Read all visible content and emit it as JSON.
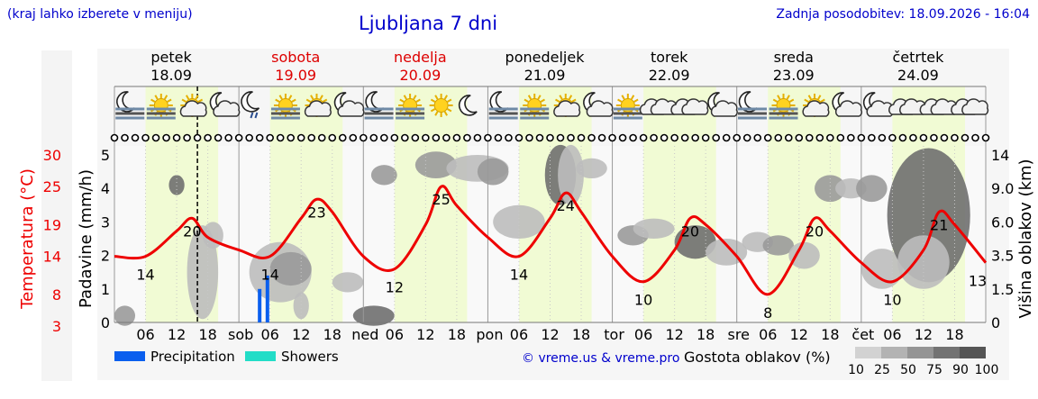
{
  "header": {
    "hint": "(kraj lahko izberete v meniju)",
    "title": "Ljubljana 7 dni",
    "updated": "Zadnja posodobitev: 18.09.2026 - 16:04"
  },
  "days": [
    {
      "name": "petek",
      "date": "18.09",
      "weekend": false,
      "abbr": ""
    },
    {
      "name": "sobota",
      "date": "19.09",
      "weekend": true,
      "abbr": "sob"
    },
    {
      "name": "nedelja",
      "date": "20.09",
      "weekend": true,
      "abbr": "ned"
    },
    {
      "name": "ponedeljek",
      "date": "21.09",
      "weekend": false,
      "abbr": "pon"
    },
    {
      "name": "torek",
      "date": "22.09",
      "weekend": false,
      "abbr": "tor"
    },
    {
      "name": "sreda",
      "date": "23.09",
      "weekend": false,
      "abbr": "sre"
    },
    {
      "name": "četrtek",
      "date": "24.09",
      "weekend": false,
      "abbr": "čet"
    }
  ],
  "chart_data": {
    "type": "line",
    "x_hour_ticks": [
      "06",
      "12",
      "18"
    ],
    "temperature": {
      "axis_label": "Temperatura (°C)",
      "ticks": [
        "3",
        "8",
        "14",
        "19",
        "25",
        "30"
      ],
      "color": "#ee0000",
      "hours": [
        0,
        6,
        12,
        15,
        18,
        24,
        30,
        36,
        39,
        42,
        48,
        54,
        60,
        63,
        66,
        72,
        78,
        84,
        87,
        90,
        96,
        102,
        108,
        111,
        114,
        120,
        126,
        132,
        135,
        138,
        144,
        150,
        156,
        159,
        162,
        168
      ],
      "values": [
        14,
        14,
        18,
        20,
        17,
        15,
        14,
        20,
        23,
        21,
        14,
        12,
        19,
        25,
        22,
        17,
        14,
        20,
        24,
        21,
        14,
        10,
        15,
        20,
        19,
        14,
        8,
        15,
        20,
        18,
        13,
        10,
        15,
        21,
        19,
        13
      ],
      "labels": [
        {
          "hour": 6,
          "value": "14"
        },
        {
          "hour": 15,
          "value": "20"
        },
        {
          "hour": 30,
          "value": "14"
        },
        {
          "hour": 39,
          "value": "23"
        },
        {
          "hour": 54,
          "value": "12"
        },
        {
          "hour": 63,
          "value": "25"
        },
        {
          "hour": 78,
          "value": "14"
        },
        {
          "hour": 87,
          "value": "24"
        },
        {
          "hour": 102,
          "value": "10"
        },
        {
          "hour": 111,
          "value": "20"
        },
        {
          "hour": 126,
          "value": "8"
        },
        {
          "hour": 135,
          "value": "20"
        },
        {
          "hour": 150,
          "value": "10"
        },
        {
          "hour": 159,
          "value": "21"
        },
        {
          "hour": 168,
          "value": "13"
        }
      ]
    },
    "precipitation": {
      "axis_label": "Padavine (mm/h)",
      "ylim": [
        0,
        5
      ],
      "ticks": [
        "0",
        "1",
        "2",
        "3",
        "4",
        "5"
      ],
      "bars": [
        {
          "hour": 28,
          "value": 1.0,
          "kind": "precipitation"
        },
        {
          "hour": 29.5,
          "value": 1.4,
          "kind": "precipitation"
        }
      ]
    },
    "cloud_height": {
      "axis_label": "Višina oblakov (km)",
      "ticks": [
        "0",
        "1.5",
        "3.5",
        "6.0",
        "9.0",
        "14"
      ]
    },
    "cloud_blobs": [
      {
        "hour": 2,
        "level": 0.2,
        "rx": 2,
        "ry": 0.3,
        "d": 50
      },
      {
        "hour": 12,
        "level": 4.1,
        "rx": 1.5,
        "ry": 0.3,
        "d": 75
      },
      {
        "hour": 17,
        "level": 1.5,
        "rx": 3,
        "ry": 1.4,
        "d": 25
      },
      {
        "hour": 19,
        "level": 2.6,
        "rx": 2,
        "ry": 0.4,
        "d": 25
      },
      {
        "hour": 32,
        "level": 1.5,
        "rx": 6,
        "ry": 0.9,
        "d": 25
      },
      {
        "hour": 34,
        "level": 1.6,
        "rx": 4,
        "ry": 0.5,
        "d": 50
      },
      {
        "hour": 36,
        "level": 0.5,
        "rx": 1.5,
        "ry": 0.4,
        "d": 25
      },
      {
        "hour": 45,
        "level": 1.2,
        "rx": 3,
        "ry": 0.3,
        "d": 25
      },
      {
        "hour": 50,
        "level": 0.2,
        "rx": 4,
        "ry": 0.3,
        "d": 75
      },
      {
        "hour": 52,
        "level": 4.4,
        "rx": 2.5,
        "ry": 0.3,
        "d": 50
      },
      {
        "hour": 62,
        "level": 4.7,
        "rx": 4,
        "ry": 0.4,
        "d": 50
      },
      {
        "hour": 70,
        "level": 4.6,
        "rx": 6,
        "ry": 0.4,
        "d": 25
      },
      {
        "hour": 73,
        "level": 4.5,
        "rx": 3,
        "ry": 0.4,
        "d": 50
      },
      {
        "hour": 78,
        "level": 3.0,
        "rx": 5,
        "ry": 0.5,
        "d": 25
      },
      {
        "hour": 86,
        "level": 4.4,
        "rx": 3,
        "ry": 0.9,
        "d": 75
      },
      {
        "hour": 88,
        "level": 4.4,
        "rx": 2.5,
        "ry": 0.9,
        "d": 25
      },
      {
        "hour": 92,
        "level": 4.6,
        "rx": 3,
        "ry": 0.3,
        "d": 25
      },
      {
        "hour": 100,
        "level": 2.6,
        "rx": 3,
        "ry": 0.3,
        "d": 50
      },
      {
        "hour": 104,
        "level": 2.8,
        "rx": 4,
        "ry": 0.3,
        "d": 25
      },
      {
        "hour": 112,
        "level": 2.4,
        "rx": 4,
        "ry": 0.5,
        "d": 75
      },
      {
        "hour": 118,
        "level": 2.1,
        "rx": 4,
        "ry": 0.4,
        "d": 25
      },
      {
        "hour": 124,
        "level": 2.4,
        "rx": 3,
        "ry": 0.3,
        "d": 25
      },
      {
        "hour": 128,
        "level": 2.3,
        "rx": 3,
        "ry": 0.3,
        "d": 50
      },
      {
        "hour": 133,
        "level": 2.0,
        "rx": 3,
        "ry": 0.4,
        "d": 25
      },
      {
        "hour": 138,
        "level": 4.0,
        "rx": 3,
        "ry": 0.4,
        "d": 50
      },
      {
        "hour": 142,
        "level": 4.0,
        "rx": 3,
        "ry": 0.3,
        "d": 25
      },
      {
        "hour": 146,
        "level": 4.0,
        "rx": 3,
        "ry": 0.4,
        "d": 50
      },
      {
        "hour": 148,
        "level": 1.6,
        "rx": 4,
        "ry": 0.6,
        "d": 25
      },
      {
        "hour": 157,
        "level": 3.2,
        "rx": 8,
        "ry": 2,
        "d": 75
      },
      {
        "hour": 156,
        "level": 1.8,
        "rx": 5,
        "ry": 0.8,
        "d": 25
      }
    ],
    "current_time_hour": 16,
    "legend": [
      {
        "label": "Precipitation",
        "color": "#0a5fee"
      },
      {
        "label": "Showers",
        "color": "#22ddc7"
      }
    ],
    "cloud_legend": {
      "label": "Gostota oblakov (%)",
      "steps": [
        "10",
        "25",
        "50",
        "75",
        "90",
        "100"
      ]
    },
    "credit": "© vreme.us & vreme.pro"
  },
  "icons": [
    "moon-fog-icon",
    "sun-fog-icon",
    "sun-cloud-icon",
    "moon-cloud-icon",
    "moon-rain-icon",
    "sun-fog-icon",
    "sun-cloud-icon",
    "moon-cloud-icon",
    "moon-fog-icon",
    "sun-fog-icon",
    "sun-icon",
    "moon-icon",
    "moon-fog-icon",
    "sun-fog-icon",
    "sun-cloud-icon",
    "moon-cloud-icon",
    "sun-fog-icon",
    "cloud-icon",
    "cloud-icon",
    "moon-cloud-icon",
    "moon-fog-icon",
    "sun-fog-icon",
    "sun-cloud-icon",
    "moon-cloud-icon",
    "moon-cloud-icon",
    "cloud-icon",
    "cloud-icon",
    "cloud-icon"
  ],
  "wind_calm": [
    0,
    1,
    2,
    3,
    4,
    5,
    6,
    7,
    8,
    9,
    10,
    11,
    12,
    13,
    14,
    15,
    16,
    17,
    18,
    19,
    20,
    21,
    22,
    23,
    24,
    25,
    26,
    27,
    28,
    29,
    30,
    31,
    32,
    33,
    34,
    35,
    36,
    37,
    38,
    39,
    40,
    41,
    42,
    43,
    44,
    45,
    46,
    47,
    48,
    49,
    50,
    51,
    52,
    53,
    54,
    55,
    56,
    57,
    58,
    59,
    60,
    61,
    62,
    63,
    64,
    65,
    66,
    67,
    68,
    69,
    70,
    71,
    72,
    73,
    74,
    75,
    76,
    77,
    78,
    79,
    80,
    81,
    82,
    83,
    84
  ],
  "colors": {
    "night_band": "#ffffff",
    "day_band": "#f1fbd4",
    "header_band": "#f6f6f6",
    "title": "#0000cc"
  }
}
